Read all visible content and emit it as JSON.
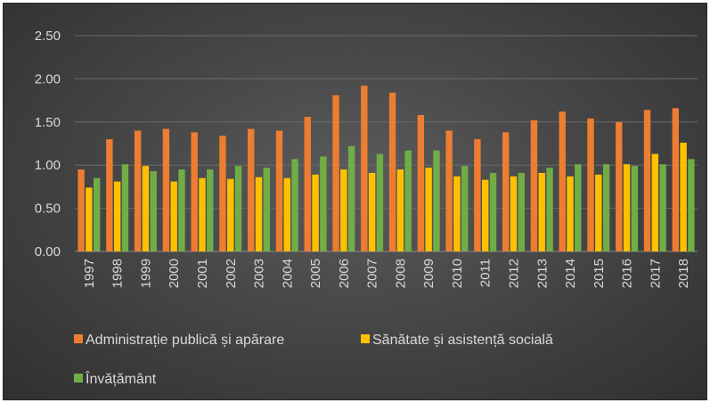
{
  "chart_data": {
    "type": "bar",
    "title": "",
    "xlabel": "",
    "ylabel": "",
    "ylim": [
      0,
      2.5
    ],
    "yticks": [
      "0.00",
      "0.50",
      "1.00",
      "1.50",
      "2.00",
      "2.50"
    ],
    "grid": true,
    "legend_position": "bottom",
    "categories": [
      "1997",
      "1998",
      "1999",
      "2000",
      "2001",
      "2002",
      "2003",
      "2004",
      "2005",
      "2006",
      "2007",
      "2008",
      "2009",
      "2010",
      "2011",
      "2012",
      "2013",
      "2014",
      "2015",
      "2016",
      "2017",
      "2018"
    ],
    "series": [
      {
        "name": "Administrație publică și apărare",
        "color": "#ed7d31",
        "values": [
          0.95,
          1.3,
          1.4,
          1.42,
          1.38,
          1.34,
          1.42,
          1.4,
          1.56,
          1.81,
          1.92,
          1.84,
          1.58,
          1.4,
          1.3,
          1.38,
          1.52,
          1.62,
          1.54,
          1.5,
          1.64,
          1.66
        ]
      },
      {
        "name": "Sănătate și asistență socială",
        "color": "#ffc000",
        "values": [
          0.74,
          0.81,
          0.99,
          0.81,
          0.85,
          0.84,
          0.86,
          0.85,
          0.89,
          0.95,
          0.91,
          0.95,
          0.97,
          0.87,
          0.83,
          0.87,
          0.91,
          0.87,
          0.89,
          1.01,
          1.13,
          1.26
        ]
      },
      {
        "name": "Învățământ",
        "color": "#70ad47",
        "values": [
          0.85,
          1.01,
          0.93,
          0.95,
          0.95,
          0.99,
          0.97,
          1.07,
          1.1,
          1.22,
          1.13,
          1.17,
          1.17,
          0.99,
          0.91,
          0.91,
          0.97,
          1.01,
          1.01,
          0.99,
          1.01,
          1.07
        ]
      }
    ]
  }
}
